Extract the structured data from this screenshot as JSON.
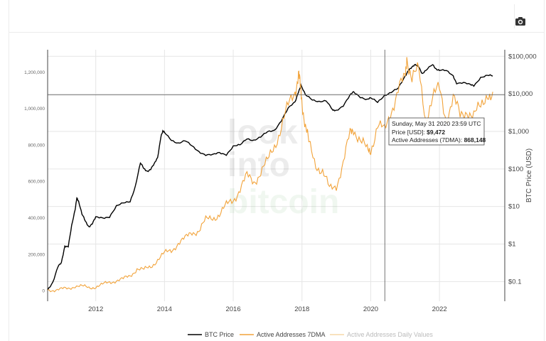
{
  "toolbar": {
    "camera_icon": "camera-icon"
  },
  "chart_data": {
    "type": "line",
    "title": "",
    "xlabel": "",
    "ylabel_left": "",
    "ylabel_right": "BTC Price (USD)",
    "x_ticks": [
      "2012",
      "2014",
      "2016",
      "2018",
      "2020",
      "2022"
    ],
    "x_range": [
      2010.6,
      2023.9
    ],
    "y_left_ticks": [
      "0",
      "200,000",
      "400,000",
      "600,000",
      "800,000",
      "1,000,000",
      "1,200,000"
    ],
    "y_left_tick_values": [
      0,
      200000,
      400000,
      600000,
      800000,
      1000000,
      1200000
    ],
    "y_left_range": [
      -60000,
      1320000
    ],
    "y_right_ticks": [
      "$0.1",
      "$1",
      "$10",
      "$100",
      "$1,000",
      "$10,000",
      "$100,000"
    ],
    "y_right_tick_values": [
      0.1,
      1,
      10,
      100,
      1000,
      10000,
      100000
    ],
    "y_right_scale": "log",
    "y_right_range": [
      0.03,
      150000
    ],
    "legend": [
      "BTC Price",
      "Active Addresses 7DMA",
      "Active Addresses Daily Values"
    ],
    "legend_position": "bottom",
    "watermark": [
      "look",
      "into",
      "bitcoin"
    ],
    "colors": {
      "btc": "#000000",
      "aa7": "#f2a33a",
      "aad": "#f6d9a8",
      "grid": "#e6e6e6",
      "axis": "#444444"
    },
    "series": [
      {
        "name": "BTC Price",
        "axis": "right",
        "x": [
          2010.6,
          2010.75,
          2010.9,
          2011.0,
          2011.1,
          2011.2,
          2011.3,
          2011.4,
          2011.45,
          2011.5,
          2011.6,
          2011.7,
          2011.8,
          2011.9,
          2012.0,
          2012.2,
          2012.4,
          2012.6,
          2012.8,
          2013.0,
          2013.15,
          2013.3,
          2013.4,
          2013.5,
          2013.6,
          2013.7,
          2013.8,
          2013.9,
          2013.95,
          2014.0,
          2014.2,
          2014.4,
          2014.6,
          2014.8,
          2015.0,
          2015.2,
          2015.4,
          2015.6,
          2015.8,
          2016.0,
          2016.2,
          2016.4,
          2016.6,
          2016.8,
          2017.0,
          2017.2,
          2017.4,
          2017.6,
          2017.8,
          2017.9,
          2017.97,
          2018.1,
          2018.3,
          2018.5,
          2018.7,
          2018.9,
          2019.0,
          2019.2,
          2019.4,
          2019.5,
          2019.7,
          2019.9,
          2020.0,
          2020.2,
          2020.4,
          2020.6,
          2020.8,
          2021.0,
          2021.1,
          2021.2,
          2021.3,
          2021.4,
          2021.5,
          2021.6,
          2021.8,
          2021.9,
          2022.0,
          2022.2,
          2022.4,
          2022.5,
          2022.7,
          2022.9,
          2023.0,
          2023.2,
          2023.4,
          2023.55
        ],
        "y": [
          0.06,
          0.1,
          0.25,
          0.3,
          0.9,
          0.9,
          3,
          8,
          18,
          14,
          6,
          4,
          3,
          3.5,
          5,
          5,
          5.5,
          10,
          12,
          14,
          35,
          140,
          100,
          90,
          100,
          130,
          200,
          800,
          1000,
          900,
          600,
          500,
          550,
          400,
          300,
          240,
          230,
          270,
          250,
          400,
          420,
          650,
          600,
          700,
          950,
          1100,
          2000,
          4000,
          6000,
          12000,
          17000,
          9000,
          7000,
          6500,
          6500,
          3500,
          3700,
          5000,
          9000,
          11000,
          8500,
          7200,
          7500,
          6000,
          9472,
          11000,
          13500,
          30000,
          45000,
          50000,
          58000,
          55000,
          35000,
          40000,
          60000,
          48000,
          43000,
          40000,
          30000,
          20000,
          19500,
          17000,
          17000,
          28000,
          30000,
          29500
        ]
      },
      {
        "name": "Active Addresses 7DMA",
        "axis": "left",
        "x": [
          2010.6,
          2010.8,
          2011.0,
          2011.2,
          2011.4,
          2011.6,
          2011.8,
          2012.0,
          2012.2,
          2012.4,
          2012.6,
          2012.8,
          2013.0,
          2013.2,
          2013.4,
          2013.6,
          2013.8,
          2014.0,
          2014.2,
          2014.4,
          2014.6,
          2014.8,
          2015.0,
          2015.2,
          2015.4,
          2015.6,
          2015.8,
          2016.0,
          2016.2,
          2016.4,
          2016.6,
          2016.8,
          2017.0,
          2017.2,
          2017.4,
          2017.6,
          2017.8,
          2017.9,
          2017.95,
          2018.0,
          2018.1,
          2018.2,
          2018.4,
          2018.6,
          2018.8,
          2019.0,
          2019.2,
          2019.4,
          2019.5,
          2019.7,
          2019.9,
          2020.0,
          2020.2,
          2020.4,
          2020.6,
          2020.8,
          2021.0,
          2021.05,
          2021.2,
          2021.4,
          2021.6,
          2021.8,
          2022.0,
          2022.2,
          2022.4,
          2022.6,
          2022.8,
          2023.0,
          2023.2,
          2023.4,
          2023.55
        ],
        "y": [
          2000,
          3000,
          5000,
          10000,
          25000,
          20000,
          15000,
          20000,
          30000,
          45000,
          55000,
          60000,
          80000,
          120000,
          110000,
          130000,
          170000,
          200000,
          220000,
          260000,
          280000,
          320000,
          330000,
          380000,
          400000,
          420000,
          460000,
          500000,
          560000,
          620000,
          600000,
          650000,
          700000,
          800000,
          900000,
          1000000,
          1100000,
          1200000,
          1100000,
          1050000,
          900000,
          800000,
          700000,
          650000,
          550000,
          580000,
          700000,
          850000,
          900000,
          820000,
          760000,
          780000,
          900000,
          868148,
          1000000,
          1100000,
          1150000,
          1300000,
          1150000,
          1200000,
          950000,
          1050000,
          1100000,
          950000,
          1050000,
          950000,
          1000000,
          950000,
          1000000,
          1100000,
          1050000
        ]
      }
    ],
    "tooltip": {
      "date": "Sunday, May 31 2020 23:59 UTC",
      "price_label": "Price [USD]: ",
      "price_value": "$9,472",
      "aa_label": "Active Addresses (7DMA): ",
      "aa_value": "868,148",
      "x": 2020.41,
      "price": 9472
    }
  }
}
